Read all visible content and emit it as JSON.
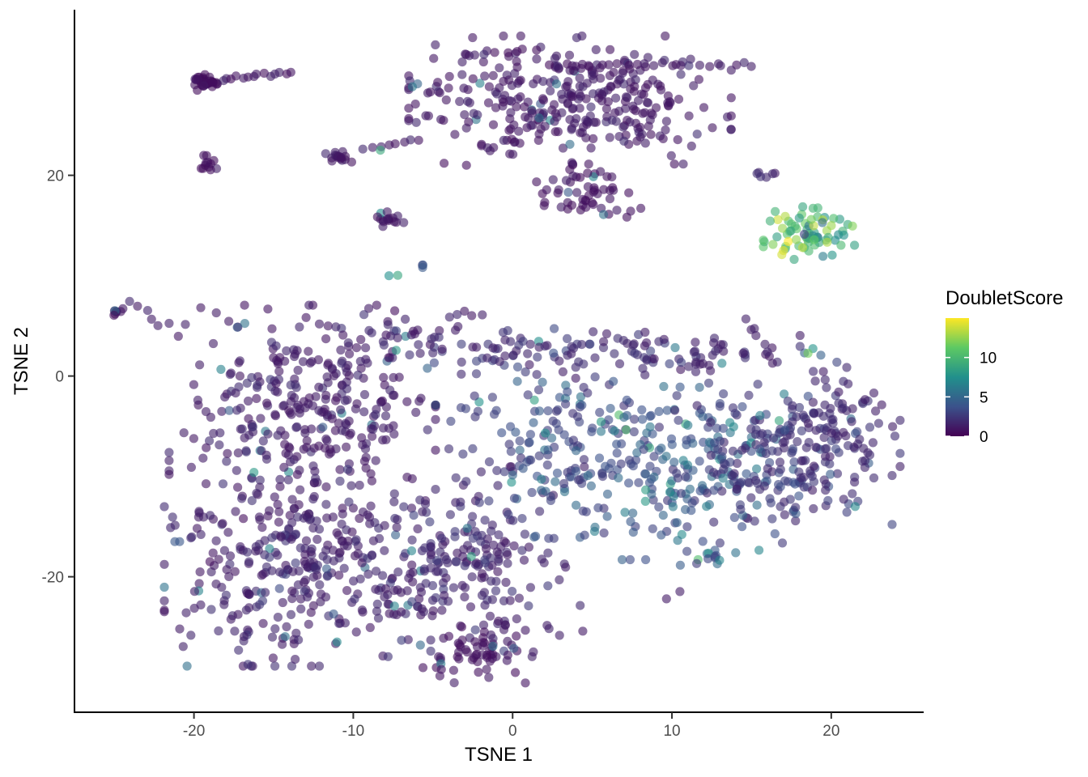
{
  "chart_data": {
    "type": "scatter",
    "title": "",
    "xlabel": "TSNE 1",
    "ylabel": "TSNE 2",
    "xlim": [
      -27.5,
      25.8
    ],
    "ylim": [
      -33.5,
      36.5
    ],
    "x_ticks": [
      -20,
      -10,
      0,
      10,
      20
    ],
    "y_ticks": [
      -20,
      0,
      20
    ],
    "grid": false,
    "legend_position": "right",
    "color_scale": {
      "name": "DoubletScore",
      "type": "viridis",
      "min": 0,
      "max": 15,
      "ticks": [
        0,
        5,
        10
      ],
      "colors": [
        "#440154",
        "#3b528b",
        "#21908c",
        "#5dc963",
        "#fde725"
      ]
    },
    "point_alpha": 0.6,
    "clusters": [
      {
        "cx": 3.6,
        "cy": 27.5,
        "sx": 4.6,
        "sy": 2.9,
        "n": 330,
        "score": 0.7
      },
      {
        "cx": 4.8,
        "cy": 18.4,
        "sx": 1.5,
        "sy": 1.3,
        "n": 55,
        "score": 0.5
      },
      {
        "cx": -19.2,
        "cy": 29.3,
        "sx": 0.45,
        "sy": 0.45,
        "n": 35,
        "score": 0.4
      },
      {
        "cx": -19.1,
        "cy": 21.0,
        "sx": 0.3,
        "sy": 0.6,
        "n": 12,
        "score": 0.5
      },
      {
        "cx": -10.7,
        "cy": 21.9,
        "sx": 0.5,
        "sy": 0.3,
        "n": 16,
        "score": 0.6
      },
      {
        "cx": -7.6,
        "cy": 15.6,
        "sx": 0.4,
        "sy": 0.4,
        "n": 16,
        "score": 0.6
      },
      {
        "cx": -5.7,
        "cy": 10.9,
        "sx": 0.15,
        "sy": 0.1,
        "n": 3,
        "score": 2.5
      },
      {
        "cx": -7.6,
        "cy": 10.0,
        "sx": 0.2,
        "sy": 0.2,
        "n": 2,
        "score": 4.0
      },
      {
        "cx": -24.9,
        "cy": 6.4,
        "sx": 0.2,
        "sy": 0.2,
        "n": 8,
        "score": 0.6
      },
      {
        "cx": 18.6,
        "cy": 14.0,
        "sx": 1.3,
        "sy": 1.3,
        "n": 70,
        "score": 9.5
      },
      {
        "cx": 15.6,
        "cy": 20.1,
        "sx": 0.4,
        "sy": 0.25,
        "n": 6,
        "score": 1.0
      },
      {
        "cx": 18.5,
        "cy": 2.2,
        "sx": 0.4,
        "sy": 0.3,
        "n": 4,
        "score": 3.5
      },
      {
        "cx": -13.2,
        "cy": -3.5,
        "sx": 3.8,
        "sy": 4.8,
        "n": 330,
        "score": 0.8
      },
      {
        "cx": -13.5,
        "cy": -19.0,
        "sx": 3.8,
        "sy": 4.5,
        "n": 300,
        "score": 0.9
      },
      {
        "cx": -3.2,
        "cy": -18.5,
        "sx": 3.5,
        "sy": 4.3,
        "n": 220,
        "score": 1.0
      },
      {
        "cx": -2.5,
        "cy": -27.5,
        "sx": 1.5,
        "sy": 1.4,
        "n": 60,
        "score": 0.5
      },
      {
        "cx": 3.5,
        "cy": -6.5,
        "sx": 3.6,
        "sy": 4.4,
        "n": 170,
        "score": 2.0
      },
      {
        "cx": 10.8,
        "cy": -9.5,
        "sx": 3.1,
        "sy": 4.0,
        "n": 170,
        "score": 2.6
      },
      {
        "cx": 17.0,
        "cy": -8.5,
        "sx": 3.1,
        "sy": 3.7,
        "n": 190,
        "score": 1.4
      },
      {
        "cx": 20.8,
        "cy": -5.0,
        "sx": 1.6,
        "sy": 2.9,
        "n": 70,
        "score": 1.1
      },
      {
        "cx": 11.0,
        "cy": 2.2,
        "sx": 3.2,
        "sy": 1.1,
        "n": 70,
        "score": 1.0
      },
      {
        "cx": 0.8,
        "cy": 2.6,
        "sx": 2.6,
        "sy": 1.1,
        "n": 50,
        "score": 1.2
      },
      {
        "cx": -6.0,
        "cy": 4.0,
        "sx": 2.5,
        "sy": 1.2,
        "n": 40,
        "score": 0.9
      },
      {
        "cx": 12.2,
        "cy": -18.5,
        "sx": 0.8,
        "sy": 0.6,
        "n": 12,
        "score": 2.5
      }
    ],
    "trails": [
      {
        "x0": -18.2,
        "y0": 29.5,
        "x1": -14.0,
        "y1": 30.3,
        "n": 14,
        "score": 0.5
      },
      {
        "x0": -9.3,
        "y0": 22.5,
        "x1": -5.8,
        "y1": 23.6,
        "n": 8,
        "score": 0.7
      },
      {
        "x0": -24.0,
        "y0": 7.4,
        "x1": -22.0,
        "y1": 5.1,
        "n": 5,
        "score": 1.0
      },
      {
        "x0": 2.3,
        "y0": 31.0,
        "x1": 15.0,
        "y1": 31.0,
        "n": 24,
        "score": 0.5
      },
      {
        "x0": -3.0,
        "y0": 32.0,
        "x1": 1.5,
        "y1": 32.5,
        "n": 8,
        "score": 0.5
      },
      {
        "x0": 14.8,
        "y0": 5.6,
        "x1": 16.3,
        "y1": 1.3,
        "n": 6,
        "score": 1.0
      },
      {
        "x0": 9.5,
        "y0": -22.0,
        "x1": 10.5,
        "y1": -21.5,
        "n": 2,
        "score": 0.5
      }
    ],
    "points": [
      {
        "x": -8.3,
        "y": 22.5,
        "v": 9.0
      },
      {
        "x": 17.0,
        "y": 12.5,
        "v": 14.5
      },
      {
        "x": 16.9,
        "y": 12.1,
        "v": 14.0
      },
      {
        "x": 17.3,
        "y": 13.4,
        "v": 15.0
      },
      {
        "x": 18.2,
        "y": 12.8,
        "v": 13.5
      },
      {
        "x": 17.8,
        "y": 13.6,
        "v": 12.5
      },
      {
        "x": 21.5,
        "y": -13.0,
        "v": 7.0
      },
      {
        "x": -21.2,
        "y": -16.5,
        "v": 4.0
      },
      {
        "x": -20.9,
        "y": -16.5,
        "v": 4.0
      },
      {
        "x": -7.4,
        "y": 6.5,
        "v": 0.5
      },
      {
        "x": -4.3,
        "y": 21.2,
        "v": 0.5
      },
      {
        "x": -2.9,
        "y": 21.0,
        "v": 0.5
      },
      {
        "x": -16.9,
        "y": -14.2,
        "v": 0.5
      },
      {
        "x": -19.0,
        "y": -18.5,
        "v": 0.5
      }
    ]
  }
}
